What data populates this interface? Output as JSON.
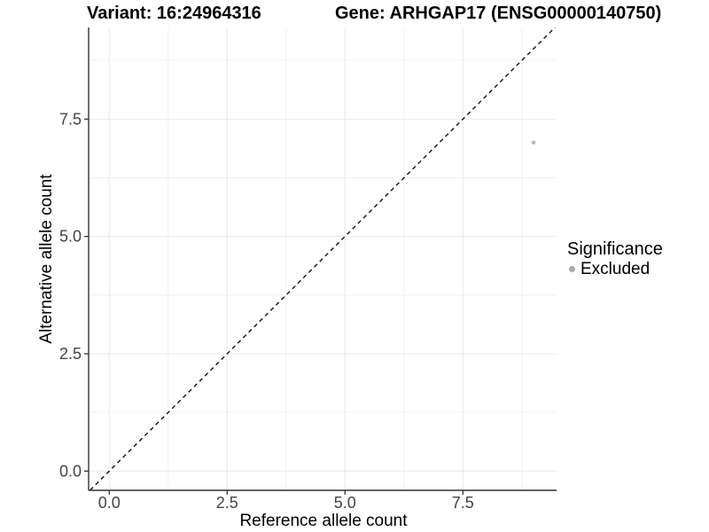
{
  "chart_data": {
    "type": "scatter",
    "titles": {
      "left": "Variant: 16:24964316",
      "right": "Gene: ARHGAP17 (ENSG00000140750)"
    },
    "xlabel": "Reference allele count",
    "ylabel": "Alternative allele count",
    "xlim": [
      -0.45,
      9.45
    ],
    "ylim": [
      -0.45,
      9.45
    ],
    "x_ticks": {
      "values": [
        0,
        2.5,
        5,
        7.5
      ],
      "labels": [
        "0.0",
        "2.5",
        "5.0",
        "7.5"
      ]
    },
    "y_ticks": {
      "values": [
        0,
        2.5,
        5,
        7.5
      ],
      "labels": [
        "0.0",
        "2.5",
        "5.0",
        "7.5"
      ]
    },
    "minor_tick_values": [
      1.25,
      3.75,
      6.25,
      8.75
    ],
    "grid": "major+minor",
    "legend_position": "right",
    "reference_line": {
      "slope": 1,
      "intercept": 0,
      "style": "dashed",
      "color": "#111111"
    },
    "series": [
      {
        "name": "Excluded",
        "color": "#bcbcbc",
        "point_radius": 2.3,
        "points": [
          [
            9,
            7
          ]
        ]
      }
    ],
    "legend": {
      "title": "Significance",
      "items": [
        {
          "label": "Excluded",
          "swatch_color": "#a9a9a9"
        }
      ]
    }
  },
  "colors": {
    "background": "#ffffff",
    "grid_major": "#e9e9e9",
    "grid_minor": "#f2f2f2",
    "axis_line": "#333333",
    "tick_mark": "#333333",
    "tick_text": "#444444",
    "title_text": "#000000"
  }
}
